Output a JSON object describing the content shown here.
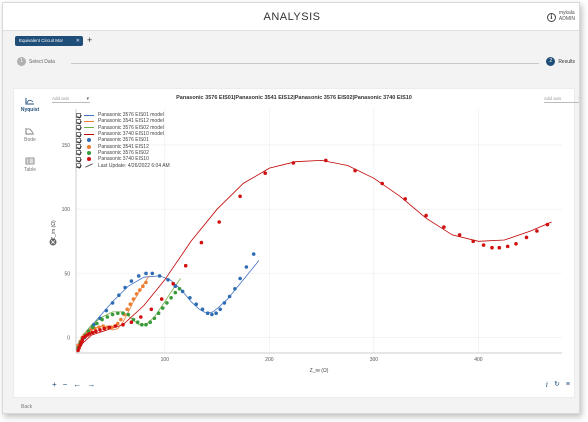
{
  "header": {
    "title": "ANALYSIS",
    "user_line1": "mykala",
    "user_line2": "ADMIN"
  },
  "tabs": [
    {
      "label": "Equivalent Circuit Mor"
    }
  ],
  "steps": [
    {
      "number": "1",
      "label": "Select Data"
    },
    {
      "number": "2",
      "label": "Results"
    }
  ],
  "sidenav": [
    {
      "label": "Nyquist",
      "icon": "nyquist-icon",
      "active": true
    },
    {
      "label": "Bode",
      "icon": "bode-icon",
      "active": false
    },
    {
      "label": "Table",
      "icon": "table-icon",
      "active": false
    }
  ],
  "axis_left_dropdown": {
    "value": "Add axis"
  },
  "axis_right_dropdown": {
    "value": "Add axis"
  },
  "legend": [
    {
      "label": "Panasonic 3576 EIS01 model",
      "color": "#4472c4",
      "kind": "line"
    },
    {
      "label": "Panasonic 3541 EIS12 model",
      "color": "#ed7d31",
      "kind": "line"
    },
    {
      "label": "Panasonic 3576 EIS02 model",
      "color": "#70ad47",
      "kind": "line"
    },
    {
      "label": "Panasonic 3740 EIS10 model",
      "color": "#c00000",
      "kind": "line"
    },
    {
      "label": "Panasonic 3576 EIS01",
      "color": "#2e6db4",
      "kind": "dot"
    },
    {
      "label": "Panasonic 3541 EIS12",
      "color": "#ed7d31",
      "kind": "dot"
    },
    {
      "label": "Panasonic 3576 EIS02",
      "color": "#3a9a3a",
      "kind": "dot"
    },
    {
      "label": "Panasonic 3740 EIS10",
      "color": "#d01010",
      "kind": "dot"
    },
    {
      "label": "Last Update: 4/26/2022 6:04 AM",
      "color": "#555555",
      "kind": "update"
    }
  ],
  "chart_data": {
    "type": "scatter",
    "title": "Panasonic 3576 EIS01|Panasonic 3541 EIS12|Panasonic 3576 EIS02|Panasonic 3740 EIS10",
    "xlabel": "Z_re (Ω)",
    "ylabel": "-Z_im (Ω)",
    "xlim": [
      15,
      480
    ],
    "ylim": [
      -12,
      178
    ],
    "xticks": [
      100,
      200,
      300,
      400
    ],
    "yticks": [
      0,
      50,
      100,
      150
    ],
    "grid": true,
    "legend_position": "top-left",
    "series": [
      {
        "name": "Panasonic 3576 EIS01 model",
        "kind": "line",
        "color": "#4472c4",
        "x": [
          17,
          25,
          35,
          50,
          65,
          80,
          95,
          105,
          115,
          125,
          133,
          140,
          146,
          152,
          160,
          170,
          180,
          190
        ],
        "y": [
          -5,
          5,
          14,
          28,
          40,
          47,
          48,
          45,
          38,
          28,
          22,
          19,
          20,
          24,
          30,
          40,
          50,
          60
        ]
      },
      {
        "name": "Panasonic 3541 EIS12 model",
        "kind": "line",
        "color": "#ed7d31",
        "x": [
          17,
          20,
          25,
          30,
          35,
          40,
          45,
          50,
          55,
          60,
          65,
          70,
          75,
          80,
          85
        ],
        "y": [
          -8,
          -2,
          3,
          6,
          8,
          9,
          8,
          6,
          7,
          12,
          20,
          28,
          35,
          42,
          48
        ]
      },
      {
        "name": "Panasonic 3576 EIS02 model",
        "kind": "line",
        "color": "#70ad47",
        "x": [
          17,
          22,
          30,
          40,
          50,
          60,
          68,
          75,
          82,
          90,
          100,
          108,
          115
        ],
        "y": [
          -6,
          2,
          10,
          16,
          20,
          20,
          15,
          10,
          10,
          16,
          28,
          38,
          46
        ]
      },
      {
        "name": "Panasonic 3740 EIS10 model",
        "kind": "line",
        "color": "#c00000",
        "x": [
          17,
          22,
          30,
          45,
          60,
          80,
          100,
          125,
          150,
          175,
          200,
          225,
          250,
          275,
          300,
          325,
          350,
          375,
          400,
          425,
          450,
          470
        ],
        "y": [
          -10,
          -4,
          2,
          6,
          10,
          25,
          45,
          75,
          100,
          120,
          132,
          137,
          138,
          134,
          124,
          110,
          93,
          80,
          75,
          76,
          83,
          90
        ]
      },
      {
        "name": "Panasonic 3576 EIS01",
        "kind": "dot",
        "color": "#2e6db4",
        "x": [
          17,
          20,
          23,
          27,
          32,
          38,
          44,
          50,
          56,
          62,
          68,
          75,
          82,
          88,
          95,
          103,
          110,
          117,
          124,
          130,
          136,
          141,
          145,
          149,
          153,
          157,
          162,
          167,
          172,
          178,
          185
        ],
        "y": [
          -8,
          -4,
          0,
          5,
          10,
          15,
          21,
          27,
          33,
          39,
          44,
          48,
          50,
          50,
          48,
          45,
          40,
          36,
          31,
          26,
          22,
          19,
          18,
          19,
          22,
          27,
          32,
          38,
          46,
          55,
          65
        ]
      },
      {
        "name": "Panasonic 3541 EIS12",
        "kind": "dot",
        "color": "#ed7d31",
        "x": [
          17,
          19,
          21,
          23,
          26,
          29,
          33,
          37,
          41,
          45,
          49,
          52,
          55,
          58,
          61,
          64,
          67,
          70,
          73,
          76,
          79,
          82
        ],
        "y": [
          -6,
          -3,
          0,
          2,
          4,
          6,
          7,
          8,
          9,
          8,
          8,
          9,
          11,
          14,
          18,
          22,
          26,
          30,
          34,
          37,
          40,
          43
        ]
      },
      {
        "name": "Panasonic 3576 EIS02",
        "kind": "dot",
        "color": "#3a9a3a",
        "x": [
          17,
          19,
          21,
          24,
          27,
          31,
          35,
          40,
          45,
          50,
          55,
          60,
          65,
          70,
          74,
          78,
          82,
          86,
          90,
          94,
          98,
          102,
          106,
          110,
          114
        ],
        "y": [
          -8,
          -4,
          -1,
          2,
          5,
          8,
          11,
          14,
          16,
          18,
          19,
          19,
          18,
          14,
          12,
          10,
          10,
          12,
          15,
          19,
          23,
          27,
          31,
          35,
          38
        ]
      },
      {
        "name": "Panasonic 3740 EIS10",
        "kind": "dot",
        "color": "#d01010",
        "x": [
          17,
          18,
          19,
          20,
          21,
          22,
          24,
          26,
          28,
          31,
          34,
          38,
          42,
          47,
          53,
          60,
          68,
          77,
          87,
          97,
          108,
          120,
          135,
          152,
          172,
          196,
          223,
          254,
          282,
          308,
          330,
          350,
          367,
          382,
          395,
          405,
          413,
          420,
          428,
          436,
          446,
          456,
          466
        ],
        "y": [
          -10,
          -8,
          -6,
          -4,
          -2,
          0,
          1,
          2,
          3,
          4,
          5,
          6,
          7,
          8,
          9,
          10,
          12,
          16,
          22,
          30,
          42,
          56,
          74,
          90,
          110,
          128,
          136,
          138,
          130,
          120,
          108,
          95,
          86,
          80,
          75,
          72,
          70,
          70,
          71,
          73,
          78,
          83,
          88
        ]
      }
    ]
  },
  "toolbar": {
    "zoom_in": "+",
    "zoom_out": "−",
    "pan_left": "←",
    "pan_right": "→",
    "info": "i",
    "refresh": "↻",
    "menu": "≡"
  },
  "back_label": "Back"
}
